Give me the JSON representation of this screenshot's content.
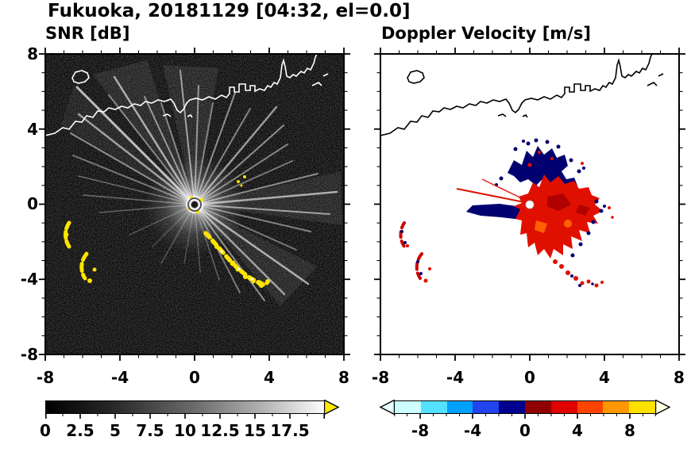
{
  "header": {
    "title": "Fukuoka, 20181129 [04:32, el=0.0]"
  },
  "snr_panel": {
    "title": "SNR [dB]",
    "y_tick_labels": [
      "8",
      "4",
      "0",
      "-4",
      "-8"
    ],
    "x_tick_labels": [
      "-8",
      "-4",
      "0",
      "4",
      "8"
    ],
    "colorbar_labels": [
      "0",
      "2.5",
      "5",
      "7.5",
      "10",
      "12.5",
      "15",
      "17.5"
    ],
    "colors": {
      "background": "#000000",
      "beam": "#ffffff",
      "coastline": "#ffffff",
      "clutter": "#ffe400",
      "arrow": "#ffe800"
    }
  },
  "doppler_panel": {
    "title": "Doppler Velocity [m/s]",
    "x_tick_labels": [
      "-8",
      "-4",
      "0",
      "4",
      "8"
    ],
    "colorbar_labels": [
      "-8",
      "-4",
      "0",
      "4",
      "8"
    ],
    "colors": {
      "background": "#ffffff",
      "coastline": "#000000",
      "positive": "#e01000",
      "negative": "#000070",
      "arrow_left": "#e6ffff",
      "arrow_right": "#ffffe0"
    },
    "colorbar_segments": [
      "#ccffff",
      "#54e1ff",
      "#00a0ff",
      "#2244ee",
      "#000090",
      "#900000",
      "#e00000",
      "#ff4400",
      "#ff9800",
      "#ffe100"
    ]
  },
  "chart_data": [
    {
      "type": "heatmap",
      "title": "SNR [dB]",
      "xlim": [
        -8,
        8
      ],
      "ylim": [
        -8,
        8
      ],
      "x_ticks": [
        -8,
        -4,
        0,
        4,
        8
      ],
      "y_ticks": [
        -8,
        -4,
        0,
        4,
        8
      ],
      "grid": false,
      "colorbar": {
        "orientation": "horizontal",
        "range": [
          0,
          20
        ],
        "tick_values": [
          0,
          2.5,
          5,
          7.5,
          10,
          12.5,
          15,
          17.5
        ],
        "colormap": "grayscale black(0) to white(20), yellow overflow arrow"
      },
      "features": [
        "radar located at origin (0,0) with dark center dot",
        "bright white radial interference beams from origin toward NW, N, NE, E and SE; dark sector toward S/SW",
        "speckled near-black background noise with faint range ring",
        "yellow high-SNR clutter chain running SE from (0.6,-1.5) to (3.7,-4.3)",
        "yellow clutter arcs near (-6.7,-1.6) and (-5.9,-3.3), specks near radar and near (2.3,1.2)",
        "white coastline of Hakata Bay across the north (y ~ 3.5 to 8) with harbor structures and a small island near (-6,6.7)"
      ]
    },
    {
      "type": "heatmap",
      "title": "Doppler Velocity [m/s]",
      "xlim": [
        -8,
        8
      ],
      "ylim": [
        -8,
        8
      ],
      "x_ticks": [
        -8,
        -4,
        0,
        4,
        8
      ],
      "y_ticks": [
        -8,
        -4,
        0,
        4,
        8
      ],
      "grid": false,
      "colorbar": {
        "orientation": "horizontal",
        "range": [
          -10,
          10
        ],
        "tick_values": [
          -8,
          -4,
          0,
          4,
          8
        ],
        "colormap": "diverging: pale-cyan/cyan/blue/navy (negative) to dark-red/red/orange/yellow (positive)"
      },
      "features": [
        "compact echo around radar: positive velocities (red, ~+2 to +6 m/s) east through south-east of radar, extent x -0.8..3.9, y -2.9..1.5",
        "negative velocities (navy, ~ -4 to -8 m/s) in ragged patches north of the echo up to y ~ 3.1",
        "navy wedge extending west from radar to x ~ -3.4 with a thin red spike above it",
        "small red/navy clutter echoes near (-6.7,-1.6), (-5.9,-3.3) and south-east near (2.5,-4)",
        "white hole at radar position, black coastline across the north, white background"
      ]
    }
  ]
}
